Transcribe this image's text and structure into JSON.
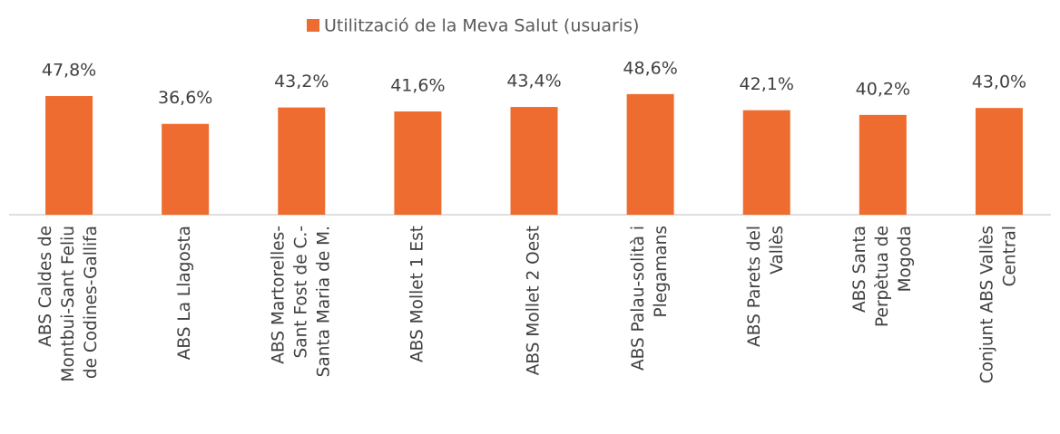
{
  "chart_data": {
    "type": "bar",
    "categories": [
      "ABS Caldes de\nMontbui-Sant Feliu\nde Codines-Gallifa",
      "ABS La Llagosta",
      "ABS Martorelles-\nSant Fost de C.-\nSanta Maria de M.",
      "ABS Mollet 1 Est",
      "ABS Mollet 2 Oest",
      "ABS Palau-solità i\nPlegamans",
      "ABS Parets del\nVallès",
      "ABS Santa\nPerpètua de\nMogoda",
      "Conjunt ABS Vallès\nCentral"
    ],
    "series": [
      {
        "name": "Utilització de la Meva Salut (usuaris)",
        "color": "#ee6c2f",
        "values": [
          47.8,
          36.6,
          43.2,
          41.6,
          43.4,
          48.6,
          42.1,
          40.2,
          43.0
        ],
        "value_labels": [
          "47,8%",
          "36,6%",
          "43,2%",
          "41,6%",
          "43,4%",
          "48,6%",
          "42,1%",
          "40,2%",
          "43,0%"
        ]
      }
    ],
    "legend": "top"
  }
}
